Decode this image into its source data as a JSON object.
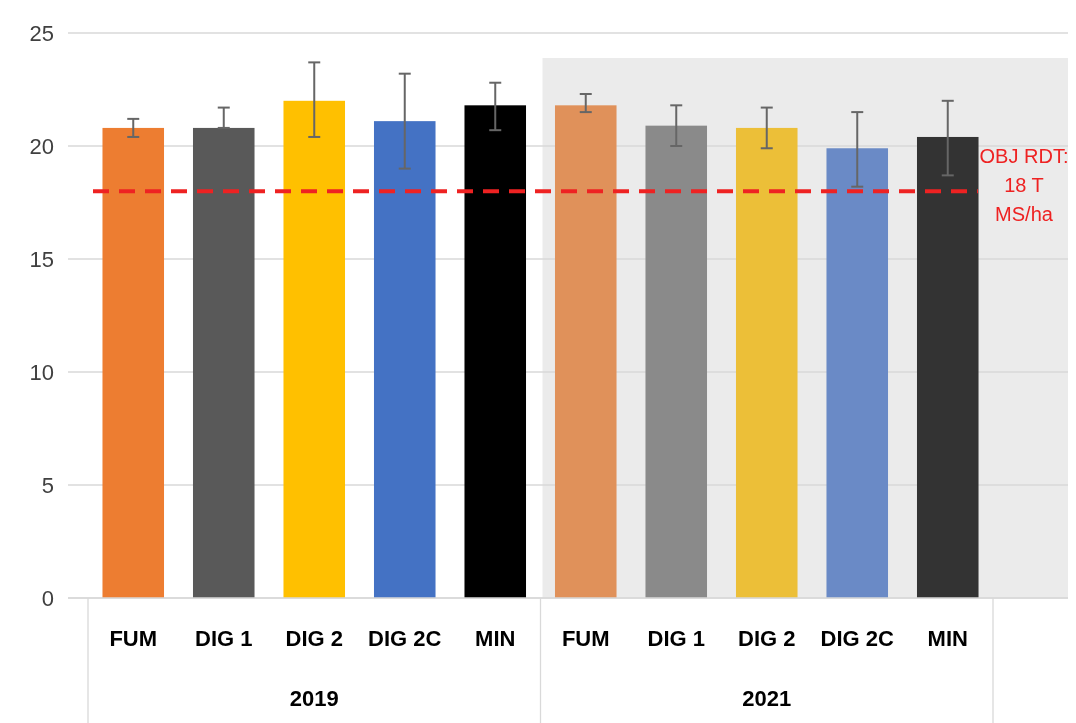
{
  "chart_data": {
    "type": "bar",
    "categories": [
      "FUM",
      "DIG 1",
      "DIG 2",
      "DIG 2C",
      "MIN",
      "FUM",
      "DIG 1",
      "DIG 2",
      "DIG 2C",
      "MIN"
    ],
    "values": [
      20.8,
      20.8,
      22.0,
      21.1,
      21.8,
      21.8,
      20.9,
      20.8,
      19.9,
      20.4
    ],
    "colors": [
      "#ed7d31",
      "#595959",
      "#ffc000",
      "#4472c4",
      "#000000",
      "#e0915a",
      "#8a8a8a",
      "#ecbf38",
      "#6a8ac6",
      "#333333"
    ],
    "errors": [
      [
        20.4,
        21.2
      ],
      [
        20.8,
        21.7
      ],
      [
        20.4,
        23.7
      ],
      [
        19.0,
        23.2
      ],
      [
        20.7,
        22.8
      ],
      [
        21.5,
        22.3
      ],
      [
        20.0,
        21.8
      ],
      [
        19.9,
        21.7
      ],
      [
        18.2,
        21.5
      ],
      [
        18.7,
        22.0
      ]
    ],
    "ylim": [
      0,
      25
    ],
    "yticks": [
      0,
      5,
      10,
      15,
      20,
      25
    ],
    "grid": "y",
    "annotations": [
      "2019",
      "2021"
    ],
    "ref_lines": [
      {
        "axis": "y",
        "value": 18,
        "label": "OBJ RDT: 18 T MS/ha",
        "color": "#ee2222",
        "line_style": "dashed"
      }
    ]
  }
}
